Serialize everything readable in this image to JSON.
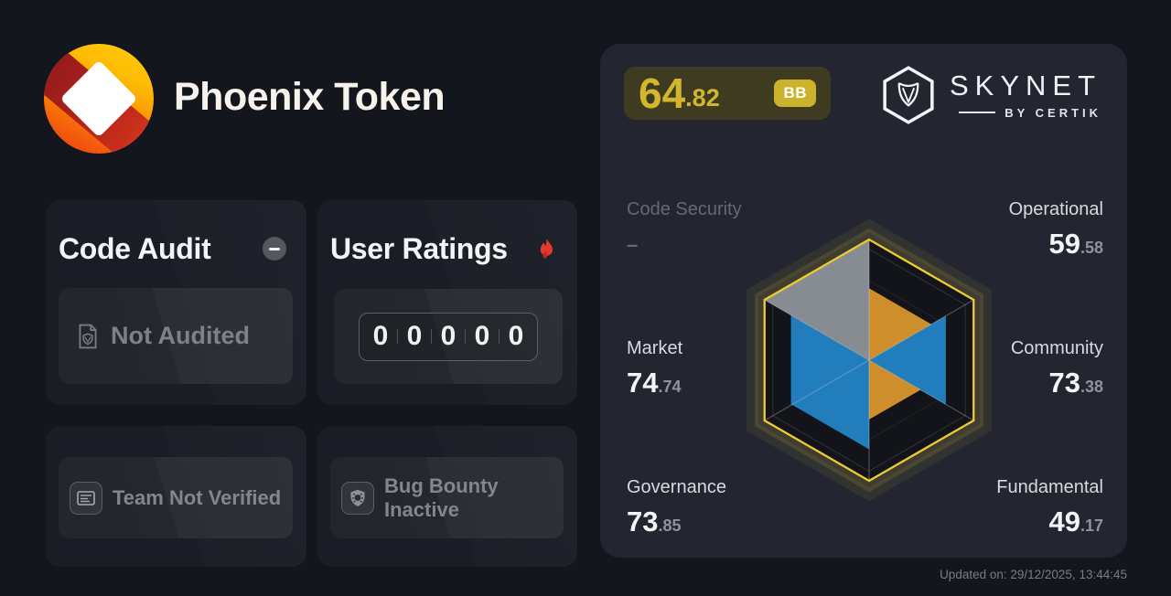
{
  "token": {
    "title": "Phoenix Token"
  },
  "cards": {
    "code_audit": {
      "title": "Code Audit",
      "status": "Not Audited"
    },
    "user_ratings": {
      "title": "User Ratings",
      "digits": [
        "0",
        "0",
        "0",
        "0",
        "0"
      ]
    },
    "team": {
      "label": "Team Not Verified"
    },
    "bug_bounty": {
      "label": "Bug Bounty Inactive"
    }
  },
  "panel": {
    "score": {
      "integer": "64",
      "decimal": ".82",
      "grade": "BB"
    },
    "brand": {
      "name": "SKYNET",
      "byline": "BY CERTIK"
    },
    "metrics": [
      {
        "name": "Code Security",
        "display": "–",
        "int": "",
        "dec": ""
      },
      {
        "name": "Operational",
        "int": "59",
        "dec": ".58"
      },
      {
        "name": "Community",
        "int": "73",
        "dec": ".38"
      },
      {
        "name": "Fundamental",
        "int": "49",
        "dec": ".17"
      },
      {
        "name": "Governance",
        "int": "73",
        "dec": ".85"
      },
      {
        "name": "Market",
        "int": "74",
        "dec": ".74"
      }
    ],
    "updated": "Updated on: 29/12/2025, 13:44:45"
  },
  "chart_data": {
    "type": "radar",
    "max": 100,
    "axes": [
      "Code Security",
      "Operational",
      "Community",
      "Fundamental",
      "Governance",
      "Market"
    ],
    "values": {
      "Code Security": null,
      "Operational": 59.58,
      "Community": 73.38,
      "Fundamental": 49.17,
      "Governance": 73.85,
      "Market": 74.74
    },
    "overall_score": 64.82,
    "grade": "BB",
    "outline_color": "#eec82f",
    "sectors": [
      {
        "name": "Operational",
        "value": 59.58,
        "color": "#d9952d"
      },
      {
        "name": "Community",
        "value": 73.38,
        "color": "#2383c5"
      },
      {
        "name": "Fundamental",
        "value": 49.17,
        "color": "#d9952d"
      },
      {
        "name": "Governance",
        "value": 73.85,
        "color": "#2383c5"
      },
      {
        "name": "Market",
        "value": 74.74,
        "color": "#2383c5"
      },
      {
        "name": "Code Security",
        "value": null,
        "color": "#8e929a"
      }
    ]
  }
}
